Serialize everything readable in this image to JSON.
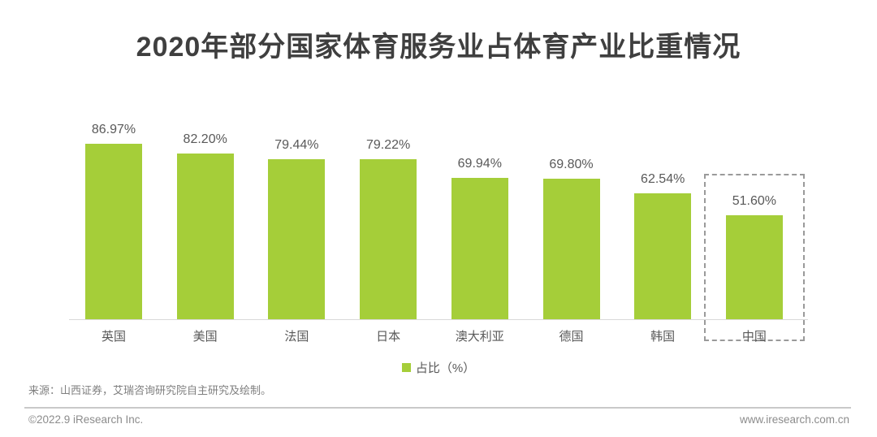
{
  "title": "2020年部分国家体育服务业占体育产业比重情况",
  "chart_data": {
    "type": "bar",
    "title": "2020年部分国家体育服务业占体育产业比重情况",
    "categories": [
      "英国",
      "美国",
      "法国",
      "日本",
      "澳大利亚",
      "德国",
      "韩国",
      "中国"
    ],
    "values": [
      86.97,
      82.2,
      79.44,
      79.22,
      69.94,
      69.8,
      62.54,
      51.6
    ],
    "value_labels": [
      "86.97%",
      "82.20%",
      "79.44%",
      "79.22%",
      "69.94%",
      "69.80%",
      "62.54%",
      "51.60%"
    ],
    "xlabel": "",
    "ylabel": "",
    "ylim": [
      0,
      100
    ],
    "grid": false,
    "legend_entries": [
      "占比（%）"
    ],
    "legend_position": "bottom-center",
    "bar_color": "#a5ce39",
    "highlighted_category": "中国",
    "highlight_style": "dashed-box"
  },
  "legend": {
    "label": "占比（%）",
    "swatch_color": "#a5ce39"
  },
  "source": "来源：山西证券，艾瑞咨询研究院自主研究及绘制。",
  "footer": {
    "left": "©2022.9 iResearch Inc.",
    "right": "www.iresearch.com.cn"
  },
  "colors": {
    "bar_green": "#a5ce39",
    "title_text": "#3f3f3f",
    "label_text": "#595959",
    "source_text": "#7f7f7f",
    "footer_text": "#8c8c8c",
    "axis_line": "#d9d9d9",
    "highlight_border": "#9a9a9a",
    "background": "#ffffff"
  }
}
